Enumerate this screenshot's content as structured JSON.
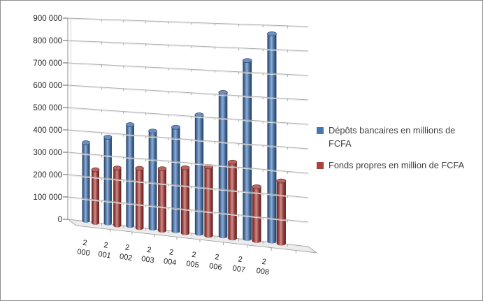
{
  "chart_data": {
    "type": "bar",
    "variant": "3d-cylinder",
    "title": "",
    "xlabel": "",
    "ylabel": "",
    "categories": [
      "2 000",
      "2 001",
      "2 002",
      "2 003",
      "2 004",
      "2 005",
      "2 006",
      "2 007",
      "2 008"
    ],
    "series": [
      {
        "name": "Dépôts bancaires en millions de FCFA",
        "color": "#4A76B0",
        "values": [
          360000,
          390000,
          450000,
          425000,
          445000,
          500000,
          595000,
          725000,
          830000
        ]
      },
      {
        "name": "Fonds propres en million de FCFA",
        "color": "#A8433F",
        "values": [
          245000,
          260000,
          265000,
          270000,
          280000,
          290000,
          315000,
          220000,
          250000
        ]
      }
    ],
    "ylim": [
      0,
      900000
    ],
    "ytick_step": 100000,
    "yticklabels": [
      "0",
      "100 000",
      "200 000",
      "300 000",
      "400 000",
      "500 000",
      "600 000",
      "700 000",
      "800 000",
      "900 000"
    ],
    "grid": true,
    "legend_position": "right"
  },
  "colors": {
    "axis_line": "#9c9c9c",
    "tick": "#6e6e6e",
    "gridline": "#adadad",
    "gridline_highlight": "#e9e9e9",
    "floor_fill": "#ececec",
    "floor_edge": "#a0a0a0",
    "label_text": "#262626",
    "legend_text": "#3f3f3f"
  }
}
